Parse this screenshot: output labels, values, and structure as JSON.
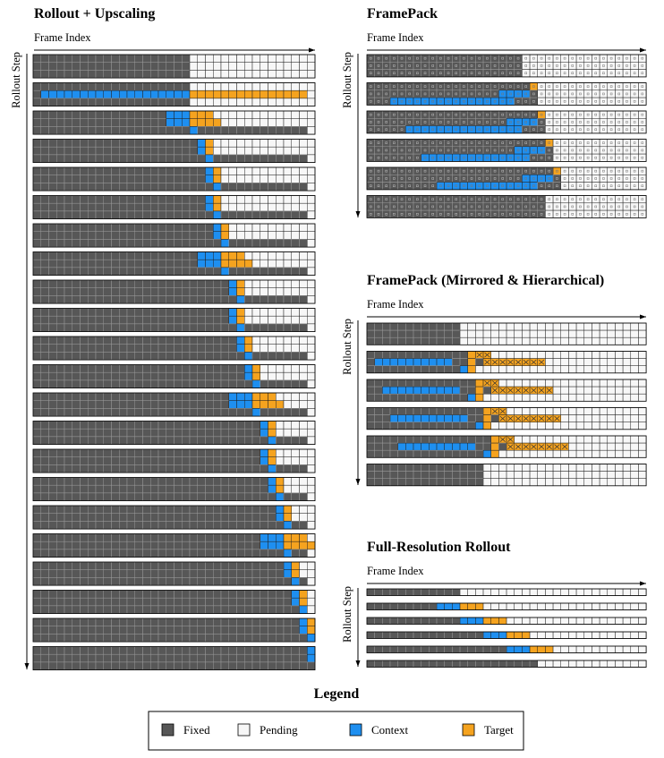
{
  "panels": [
    {
      "title": "Rollout + Upscaling",
      "x_label": "Frame Index",
      "y_label": "Rollout Step"
    },
    {
      "title": "FramePack",
      "x_label": "Frame Index",
      "y_label": "Rollout Step"
    },
    {
      "title": "FramePack (Mirrored & Hierarchical)",
      "x_label": "Frame Index",
      "y_label": "Rollout Step"
    },
    {
      "title": "Full-Resolution Rollout",
      "x_label": "Frame Index",
      "y_label": "Rollout Step"
    }
  ],
  "legend": {
    "title": "Legend",
    "items": [
      {
        "label": "Fixed",
        "color": "#575757"
      },
      {
        "label": "Pending",
        "color": "#f7f7f7"
      },
      {
        "label": "Context",
        "color": "#1e8ff0"
      },
      {
        "label": "Target",
        "color": "#f5a31f"
      }
    ]
  }
}
